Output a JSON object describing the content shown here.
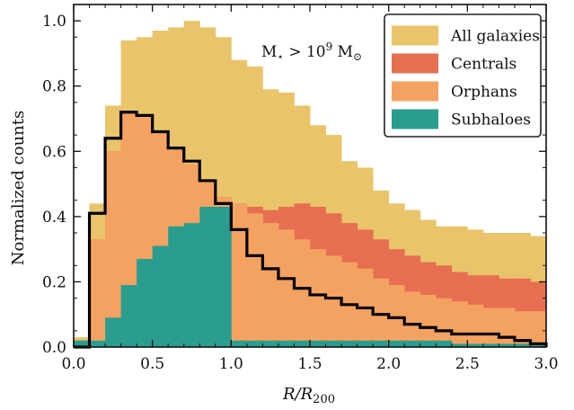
{
  "chart_data": {
    "type": "bar",
    "xlabel": "R/R200",
    "xlabel_italic_main": "R/R",
    "xlabel_sub": "200",
    "ylabel": "Normalized counts",
    "xlim": [
      0.0,
      3.0
    ],
    "ylim": [
      0.0,
      1.05
    ],
    "xticks": [
      "0.0",
      "0.5",
      "1.0",
      "1.5",
      "2.0",
      "2.5",
      "3.0"
    ],
    "xtick_values": [
      0.0,
      0.5,
      1.0,
      1.5,
      2.0,
      2.5,
      3.0
    ],
    "yticks": [
      "0.0",
      "0.2",
      "0.4",
      "0.6",
      "0.8",
      "1.0"
    ],
    "ytick_values": [
      0.0,
      0.2,
      0.4,
      0.6,
      0.8,
      1.0
    ],
    "bin_edges": [
      0.0,
      0.1,
      0.2,
      0.3,
      0.4,
      0.5,
      0.6,
      0.7,
      0.8,
      0.9,
      1.0,
      1.1,
      1.2,
      1.3,
      1.4,
      1.5,
      1.6,
      1.7,
      1.8,
      1.9,
      2.0,
      2.1,
      2.2,
      2.3,
      2.4,
      2.5,
      2.6,
      2.7,
      2.8,
      2.9,
      3.0
    ],
    "stack_series": [
      {
        "name": "All galaxies",
        "color": "#e9c46a",
        "values": [
          0.03,
          0.44,
          0.74,
          0.94,
          0.95,
          0.97,
          0.98,
          1.0,
          0.98,
          0.95,
          0.88,
          0.86,
          0.79,
          0.78,
          0.74,
          0.68,
          0.65,
          0.57,
          0.55,
          0.48,
          0.44,
          0.42,
          0.39,
          0.37,
          0.37,
          0.36,
          0.35,
          0.35,
          0.35,
          0.34
        ]
      },
      {
        "name": "Centrals",
        "color": "#e76f51",
        "values": [
          0.02,
          0.33,
          0.6,
          0.72,
          0.71,
          0.66,
          0.61,
          0.56,
          0.51,
          0.46,
          0.44,
          0.43,
          0.42,
          0.43,
          0.44,
          0.43,
          0.41,
          0.38,
          0.36,
          0.33,
          0.3,
          0.28,
          0.26,
          0.25,
          0.23,
          0.22,
          0.22,
          0.21,
          0.21,
          0.2
        ]
      },
      {
        "name": "Orphans",
        "color": "#f4a261",
        "values": [
          0.02,
          0.33,
          0.6,
          0.72,
          0.71,
          0.66,
          0.61,
          0.56,
          0.51,
          0.46,
          0.44,
          0.41,
          0.38,
          0.36,
          0.33,
          0.3,
          0.28,
          0.26,
          0.24,
          0.21,
          0.19,
          0.17,
          0.16,
          0.15,
          0.14,
          0.13,
          0.12,
          0.12,
          0.11,
          0.11
        ]
      },
      {
        "name": "Subhaloes",
        "color": "#2a9d8f",
        "values": [
          0.02,
          0.02,
          0.09,
          0.19,
          0.27,
          0.31,
          0.37,
          0.38,
          0.43,
          0.43,
          0.02,
          0.02,
          0.02,
          0.02,
          0.02,
          0.02,
          0.02,
          0.02,
          0.02,
          0.02,
          0.02,
          0.02,
          0.02,
          0.02,
          0.01,
          0.01,
          0.01,
          0.01,
          0.01,
          0.01
        ]
      }
    ],
    "step_line": {
      "color": "#000000",
      "values": [
        0.0,
        0.41,
        0.64,
        0.72,
        0.71,
        0.66,
        0.61,
        0.57,
        0.51,
        0.44,
        0.36,
        0.28,
        0.24,
        0.21,
        0.18,
        0.16,
        0.15,
        0.13,
        0.12,
        0.1,
        0.09,
        0.07,
        0.06,
        0.05,
        0.04,
        0.04,
        0.04,
        0.03,
        0.02,
        0.01
      ]
    },
    "legend": {
      "placement": "top-right",
      "entries": [
        {
          "label": "All galaxies",
          "color": "#e9c46a"
        },
        {
          "label": "Centrals",
          "color": "#e76f51"
        },
        {
          "label": "Orphans",
          "color": "#f4a261"
        },
        {
          "label": "Subhaloes",
          "color": "#2a9d8f"
        }
      ]
    },
    "annotation": {
      "m_main": "M",
      "m_sub": "⋆",
      "relation": " > 10",
      "exp": "9",
      "unit_main": " M",
      "unit_sub": "⊙"
    }
  }
}
